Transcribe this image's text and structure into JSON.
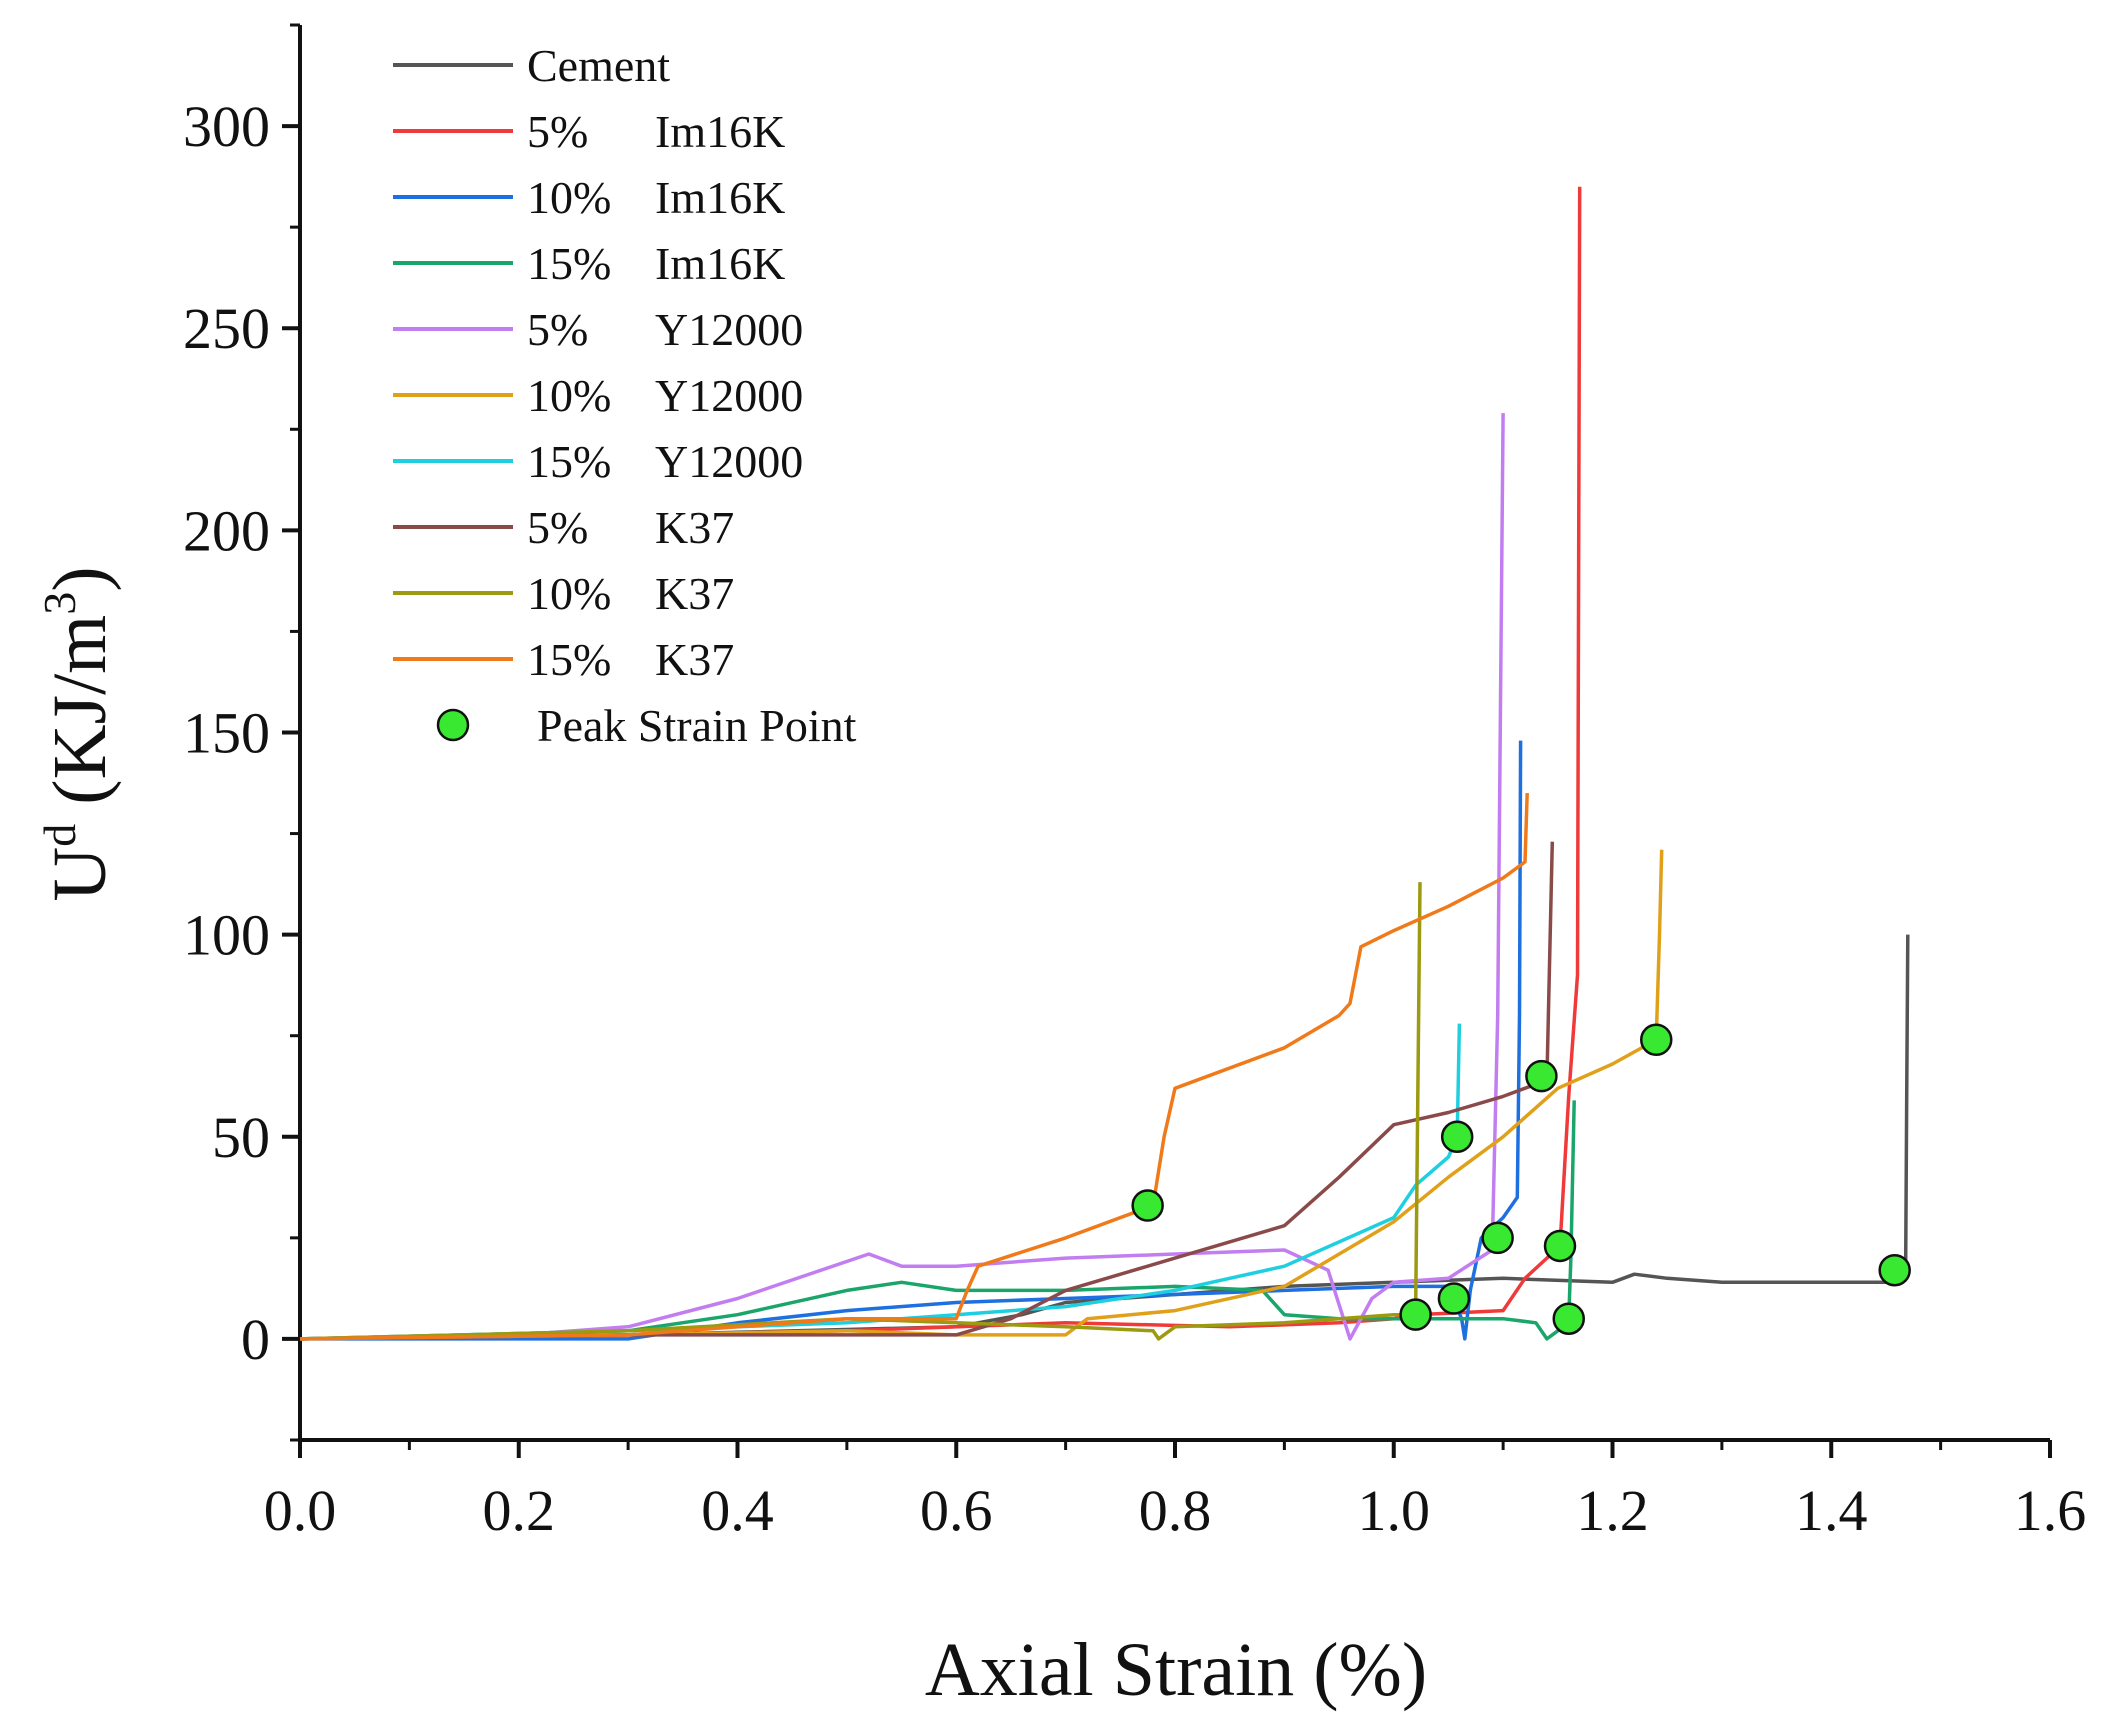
{
  "chart_data": {
    "type": "line",
    "title": "",
    "xlabel": "Axial Strain (%)",
    "ylabel": {
      "base": "U",
      "sup": "d",
      "open": " (KJ/m",
      "unit_sup": "3",
      "close": ")"
    },
    "xlim": [
      0.0,
      1.6
    ],
    "ylim": [
      -25,
      325
    ],
    "x_ticks": [
      "0.0",
      "0.2",
      "0.4",
      "0.6",
      "0.8",
      "1.0",
      "1.2",
      "1.4",
      "1.6"
    ],
    "y_ticks": [
      "0",
      "50",
      "100",
      "150",
      "200",
      "250",
      "300"
    ],
    "grid": false,
    "legend_position": "top-left",
    "series": [
      {
        "name": "Cement",
        "pct": "",
        "mat": "Cement",
        "color": "#555555",
        "points": [
          [
            0,
            0
          ],
          [
            0.3,
            1
          ],
          [
            0.6,
            3
          ],
          [
            0.66,
            6
          ],
          [
            0.7,
            9
          ],
          [
            0.8,
            11
          ],
          [
            0.9,
            13
          ],
          [
            1.0,
            14
          ],
          [
            1.1,
            15
          ],
          [
            1.2,
            14
          ],
          [
            1.22,
            16
          ],
          [
            1.25,
            15
          ],
          [
            1.3,
            14
          ],
          [
            1.4,
            14
          ],
          [
            1.46,
            14
          ],
          [
            1.465,
            15
          ],
          [
            1.468,
            15
          ],
          [
            1.469,
            60
          ],
          [
            1.47,
            100
          ]
        ]
      },
      {
        "name": "5%    Im16K",
        "pct": "5%",
        "mat": "Im16K",
        "color": "#f03a3a",
        "points": [
          [
            0,
            0
          ],
          [
            0.3,
            1
          ],
          [
            0.5,
            2
          ],
          [
            0.7,
            4
          ],
          [
            0.85,
            3
          ],
          [
            0.95,
            4
          ],
          [
            1.0,
            5
          ],
          [
            1.02,
            6
          ],
          [
            1.1,
            7
          ],
          [
            1.12,
            15
          ],
          [
            1.14,
            20
          ],
          [
            1.152,
            23
          ],
          [
            1.16,
            60
          ],
          [
            1.168,
            90
          ],
          [
            1.17,
            285
          ]
        ]
      },
      {
        "name": "10%  Im16K",
        "pct": "10%",
        "mat": "Im16K",
        "color": "#1e6fe0",
        "points": [
          [
            0,
            0
          ],
          [
            0.3,
            0
          ],
          [
            0.4,
            4
          ],
          [
            0.5,
            7
          ],
          [
            0.6,
            9
          ],
          [
            0.7,
            10
          ],
          [
            0.8,
            11
          ],
          [
            0.9,
            12
          ],
          [
            1.0,
            13
          ],
          [
            1.02,
            13
          ],
          [
            1.05,
            13
          ],
          [
            1.062,
            5
          ],
          [
            1.065,
            0
          ],
          [
            1.07,
            12
          ],
          [
            1.08,
            25
          ],
          [
            1.1,
            30
          ],
          [
            1.113,
            35
          ],
          [
            1.115,
            80
          ],
          [
            1.116,
            148
          ]
        ]
      },
      {
        "name": "15%  Im16K",
        "pct": "15%",
        "mat": "Im16K",
        "color": "#1aa56b",
        "points": [
          [
            0,
            0
          ],
          [
            0.3,
            2
          ],
          [
            0.4,
            6
          ],
          [
            0.5,
            12
          ],
          [
            0.55,
            14
          ],
          [
            0.6,
            12
          ],
          [
            0.7,
            12
          ],
          [
            0.8,
            13
          ],
          [
            0.88,
            12
          ],
          [
            0.9,
            6
          ],
          [
            0.95,
            5
          ],
          [
            1.0,
            5
          ],
          [
            1.1,
            5
          ],
          [
            1.13,
            4
          ],
          [
            1.14,
            0
          ],
          [
            1.15,
            2
          ],
          [
            1.16,
            5
          ],
          [
            1.162,
            20
          ],
          [
            1.165,
            59
          ]
        ]
      },
      {
        "name": "5%    Y12000",
        "pct": "5%",
        "mat": "Y12000",
        "color": "#c27ef0",
        "points": [
          [
            0,
            0
          ],
          [
            0.2,
            1
          ],
          [
            0.3,
            3
          ],
          [
            0.4,
            10
          ],
          [
            0.52,
            21
          ],
          [
            0.55,
            18
          ],
          [
            0.6,
            18
          ],
          [
            0.7,
            20
          ],
          [
            0.8,
            21
          ],
          [
            0.9,
            22
          ],
          [
            0.94,
            17
          ],
          [
            0.96,
            0
          ],
          [
            0.98,
            10
          ],
          [
            1.0,
            14
          ],
          [
            1.05,
            15
          ],
          [
            1.09,
            22
          ],
          [
            1.095,
            80
          ],
          [
            1.1,
            229
          ]
        ]
      },
      {
        "name": "10%  Y12000",
        "pct": "10%",
        "mat": "Y12000",
        "color": "#e0a01a",
        "points": [
          [
            0,
            0
          ],
          [
            0.3,
            1
          ],
          [
            0.5,
            2
          ],
          [
            0.6,
            1
          ],
          [
            0.65,
            1
          ],
          [
            0.7,
            1
          ],
          [
            0.72,
            5
          ],
          [
            0.8,
            7
          ],
          [
            0.9,
            13
          ],
          [
            1.0,
            29
          ],
          [
            1.05,
            40
          ],
          [
            1.1,
            50
          ],
          [
            1.15,
            62
          ],
          [
            1.2,
            68
          ],
          [
            1.24,
            74
          ],
          [
            1.243,
            100
          ],
          [
            1.245,
            121
          ]
        ]
      },
      {
        "name": "15%  Y12000",
        "pct": "15%",
        "mat": "Y12000",
        "color": "#1ecfe0",
        "points": [
          [
            0,
            0
          ],
          [
            0.3,
            2
          ],
          [
            0.5,
            4
          ],
          [
            0.6,
            6
          ],
          [
            0.7,
            8
          ],
          [
            0.8,
            12
          ],
          [
            0.9,
            18
          ],
          [
            1.0,
            30
          ],
          [
            1.02,
            38
          ],
          [
            1.05,
            45
          ],
          [
            1.058,
            50
          ],
          [
            1.06,
            78
          ]
        ]
      },
      {
        "name": "5%    K37",
        "pct": "5%",
        "mat": "K37",
        "color": "#8a4a4a",
        "points": [
          [
            0,
            0
          ],
          [
            0.3,
            1
          ],
          [
            0.6,
            1
          ],
          [
            0.65,
            5
          ],
          [
            0.7,
            12
          ],
          [
            0.8,
            20
          ],
          [
            0.9,
            28
          ],
          [
            0.95,
            40
          ],
          [
            1.0,
            53
          ],
          [
            1.05,
            56
          ],
          [
            1.1,
            60
          ],
          [
            1.14,
            64
          ],
          [
            1.143,
            100
          ],
          [
            1.145,
            123
          ]
        ]
      },
      {
        "name": "10%  K37",
        "pct": "10%",
        "mat": "K37",
        "color": "#9b9a10",
        "points": [
          [
            0,
            0
          ],
          [
            0.3,
            2
          ],
          [
            0.5,
            5
          ],
          [
            0.6,
            4
          ],
          [
            0.7,
            3
          ],
          [
            0.78,
            2
          ],
          [
            0.785,
            0
          ],
          [
            0.8,
            3
          ],
          [
            0.9,
            4
          ],
          [
            1.0,
            6
          ],
          [
            1.02,
            6
          ],
          [
            1.022,
            60
          ],
          [
            1.024,
            113
          ]
        ]
      },
      {
        "name": "15%  K37",
        "pct": "15%",
        "mat": "K37",
        "color": "#f07a1a",
        "points": [
          [
            0,
            0
          ],
          [
            0.3,
            1
          ],
          [
            0.5,
            5
          ],
          [
            0.6,
            5
          ],
          [
            0.61,
            12
          ],
          [
            0.62,
            18
          ],
          [
            0.7,
            25
          ],
          [
            0.78,
            33
          ],
          [
            0.79,
            50
          ],
          [
            0.8,
            62
          ],
          [
            0.9,
            72
          ],
          [
            0.95,
            80
          ],
          [
            0.96,
            83
          ],
          [
            0.97,
            97
          ],
          [
            1.0,
            101
          ],
          [
            1.05,
            107
          ],
          [
            1.1,
            114
          ],
          [
            1.12,
            118
          ],
          [
            1.122,
            135
          ]
        ]
      }
    ],
    "peak_points": {
      "label": "Peak Strain Point",
      "color": "#39e830",
      "points": [
        [
          0.775,
          33
        ],
        [
          1.02,
          6
        ],
        [
          1.055,
          10
        ],
        [
          1.058,
          50
        ],
        [
          1.095,
          25
        ],
        [
          1.135,
          65
        ],
        [
          1.152,
          23
        ],
        [
          1.16,
          5
        ],
        [
          1.24,
          74
        ],
        [
          1.458,
          17
        ]
      ]
    }
  }
}
